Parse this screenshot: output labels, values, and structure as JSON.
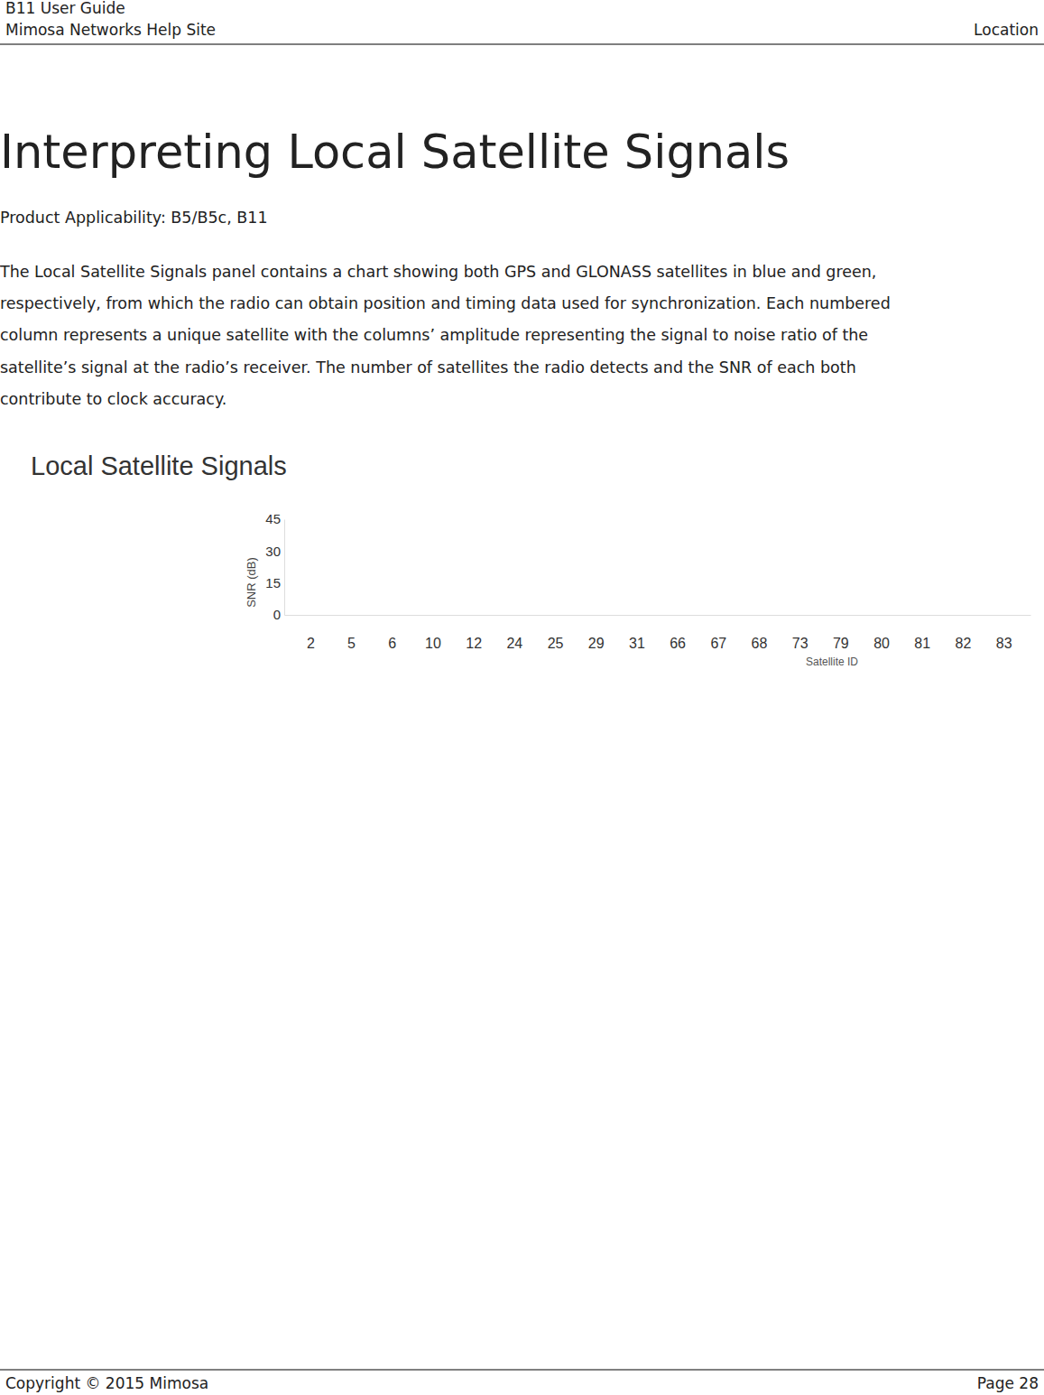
{
  "header": {
    "guide": "B11 User Guide",
    "site": "Mimosa Networks Help Site",
    "section": "Location"
  },
  "title": "Interpreting Local Satellite Signals",
  "applicability": "Product Applicability: B5/B5c, B11",
  "paragraph": [
    "The Local Satellite Signals panel contains a chart showing both GPS and GLONASS satellites in blue and green,",
    "respectively, from which the radio can obtain position and timing data used for synchronization. Each numbered",
    "column represents a unique satellite with the columns’ amplitude representing the signal to noise ratio of the",
    "satellite’s signal at the radio’s receiver. The number of satellites the radio detects and the SNR of each both",
    "contribute to clock accuracy."
  ],
  "chart_data": {
    "type": "bar",
    "title": "Local Satellite Signals",
    "xlabel": "Satellite ID",
    "ylabel": "SNR (dB)",
    "categories": [
      "2",
      "5",
      "6",
      "10",
      "12",
      "24",
      "25",
      "29",
      "31",
      "66",
      "67",
      "68",
      "73",
      "79",
      "80",
      "81",
      "82",
      "83"
    ],
    "values": [
      0,
      0,
      0,
      0,
      0,
      0,
      0,
      0,
      0,
      0,
      0,
      0,
      0,
      0,
      0,
      0,
      0,
      0
    ],
    "color": "#3a7fc1",
    "ylim": [
      0,
      45
    ],
    "yticks": [
      0,
      15,
      30,
      45
    ]
  },
  "footer": {
    "copyright": "Copyright © 2015 Mimosa",
    "page": "Page 28"
  }
}
